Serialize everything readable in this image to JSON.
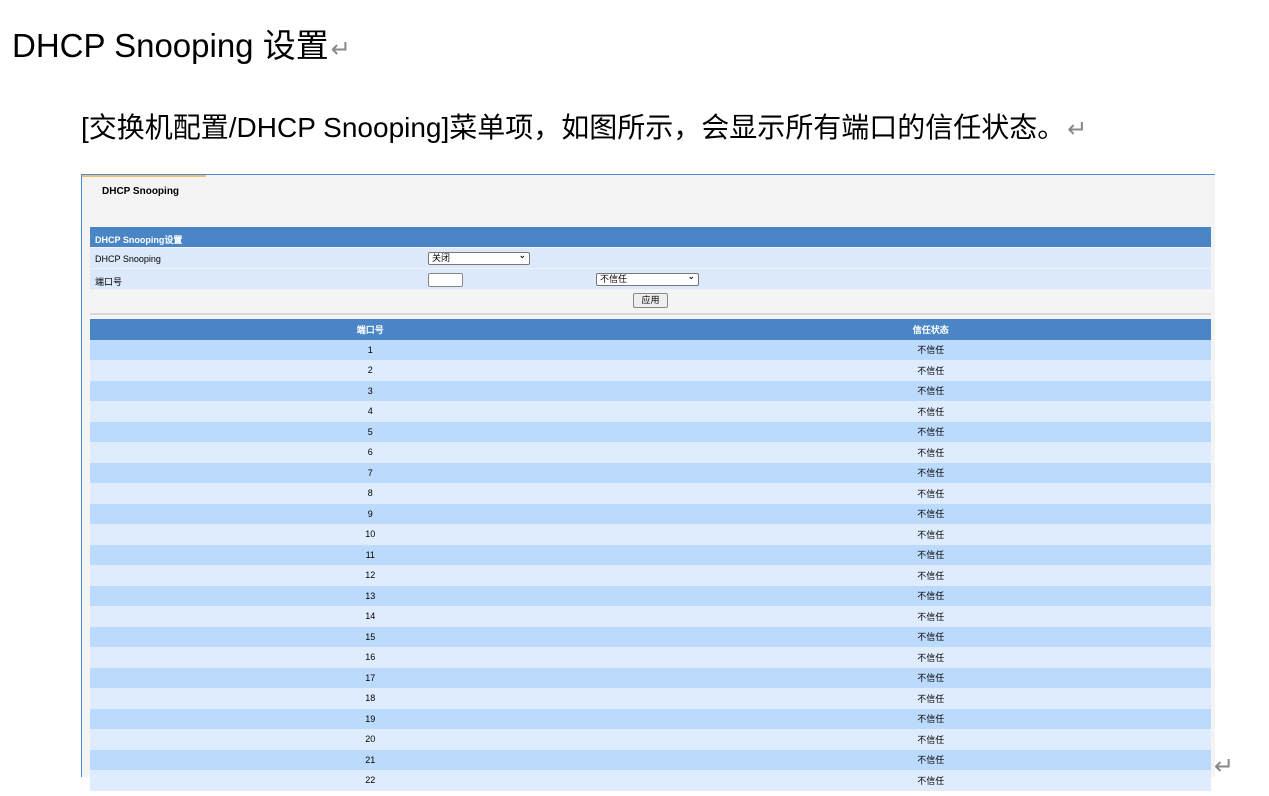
{
  "doc": {
    "title": "DHCP Snooping 设置",
    "paragraph": "[交换机配置/DHCP Snooping]菜单项，如图所示，会显示所有端口的信任状态。",
    "para_mark": "↵"
  },
  "shot": {
    "tab": "DHCP Snooping",
    "section_title": "DHCP Snooping设置",
    "dhcp_label": "DHCP Snooping",
    "dhcp_value": "关闭",
    "port_label": "端口号",
    "port_value": "",
    "trust_value": "不信任",
    "apply": "应用",
    "columns": [
      "端口号",
      "信任状态"
    ],
    "rows": [
      [
        "1",
        "不信任"
      ],
      [
        "2",
        "不信任"
      ],
      [
        "3",
        "不信任"
      ],
      [
        "4",
        "不信任"
      ],
      [
        "5",
        "不信任"
      ],
      [
        "6",
        "不信任"
      ],
      [
        "7",
        "不信任"
      ],
      [
        "8",
        "不信任"
      ],
      [
        "9",
        "不信任"
      ],
      [
        "10",
        "不信任"
      ],
      [
        "11",
        "不信任"
      ],
      [
        "12",
        "不信任"
      ],
      [
        "13",
        "不信任"
      ],
      [
        "14",
        "不信任"
      ],
      [
        "15",
        "不信任"
      ],
      [
        "16",
        "不信任"
      ],
      [
        "17",
        "不信任"
      ],
      [
        "18",
        "不信任"
      ],
      [
        "19",
        "不信任"
      ],
      [
        "20",
        "不信任"
      ],
      [
        "21",
        "不信任"
      ],
      [
        "22",
        "不信任"
      ]
    ]
  }
}
